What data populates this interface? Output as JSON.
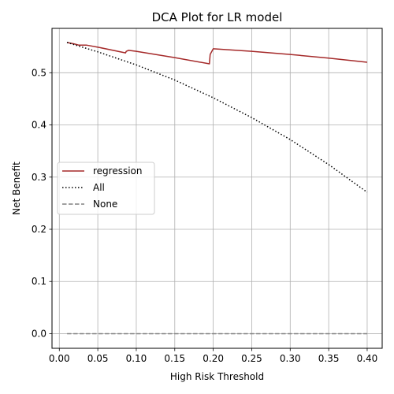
{
  "chart_data": {
    "type": "line",
    "title": "DCA Plot for LR model",
    "xlabel": "High Risk Threshold",
    "ylabel": "Net Benefit",
    "xlim": [
      -0.0095,
      0.4195
    ],
    "ylim": [
      -0.028,
      0.585
    ],
    "x_ticks": [
      0.0,
      0.05,
      0.1,
      0.15,
      0.2,
      0.25,
      0.3,
      0.35,
      0.4
    ],
    "x_tick_labels": [
      "0.00",
      "0.05",
      "0.10",
      "0.15",
      "0.20",
      "0.25",
      "0.30",
      "0.35",
      "0.40"
    ],
    "y_ticks": [
      0.0,
      0.1,
      0.2,
      0.3,
      0.4,
      0.5
    ],
    "y_tick_labels": [
      "0.0",
      "0.1",
      "0.2",
      "0.3",
      "0.4",
      "0.5"
    ],
    "grid": true,
    "legend_position": "center-left",
    "series": [
      {
        "name": "regression",
        "color": "#a52a2a",
        "style": "solid",
        "x": [
          0.01,
          0.02,
          0.025,
          0.035,
          0.05,
          0.086,
          0.087,
          0.09,
          0.1,
          0.15,
          0.195,
          0.196,
          0.2,
          0.25,
          0.3,
          0.35,
          0.4
        ],
        "y": [
          0.558,
          0.555,
          0.553,
          0.553,
          0.549,
          0.538,
          0.541,
          0.543,
          0.541,
          0.529,
          0.517,
          0.535,
          0.546,
          0.541,
          0.535,
          0.528,
          0.52
        ]
      },
      {
        "name": "All",
        "color": "#000000",
        "style": "dotted",
        "x": [
          0.01,
          0.05,
          0.1,
          0.15,
          0.2,
          0.25,
          0.3,
          0.35,
          0.4
        ],
        "y": [
          0.558,
          0.54,
          0.515,
          0.486,
          0.452,
          0.414,
          0.372,
          0.324,
          0.271
        ]
      },
      {
        "name": "None",
        "color": "#808080",
        "style": "dashed",
        "x": [
          0.01,
          0.4
        ],
        "y": [
          0.0,
          0.0
        ]
      }
    ]
  }
}
